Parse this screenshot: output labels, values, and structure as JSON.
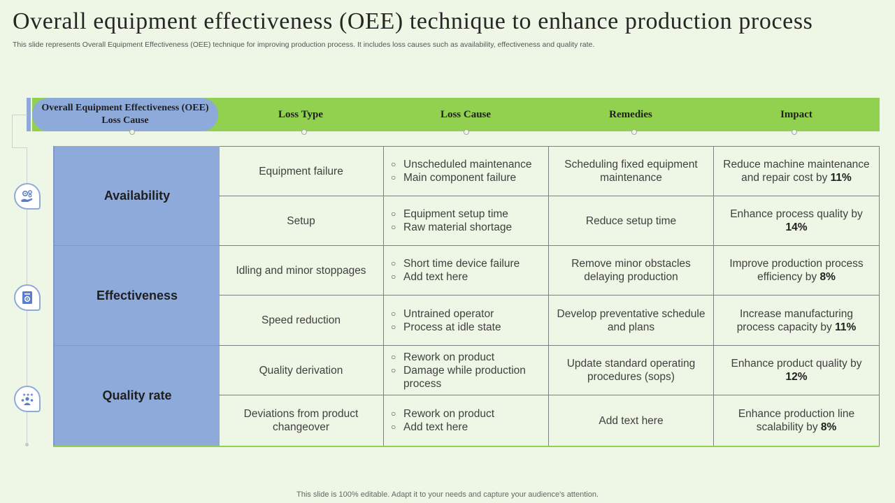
{
  "title": "Overall equipment effectiveness (OEE) technique to enhance production process",
  "subtitle": "This slide represents Overall Equipment Effectiveness (OEE) technique for improving production process. It includes loss causes such as availability, effectiveness and quality rate.",
  "header": {
    "first": "Overall Equipment Effectiveness (OEE) Loss Cause",
    "loss_type": "Loss Type",
    "loss_cause": "Loss Cause",
    "remedies": "Remedies",
    "impact": "Impact"
  },
  "categories": [
    "Availability",
    "Effectiveness",
    "Quality rate"
  ],
  "rows": [
    {
      "type": "Equipment failure",
      "causes": [
        "Unscheduled maintenance",
        "Main component failure"
      ],
      "remedy": "Scheduling fixed equipment maintenance",
      "impact_text": "Reduce machine maintenance and repair cost by",
      "impact_value": "11%"
    },
    {
      "type": "Setup",
      "causes": [
        "Equipment setup time",
        "Raw material shortage"
      ],
      "remedy": "Reduce setup time",
      "impact_text": "Enhance process quality by",
      "impact_value": "14%"
    },
    {
      "type": "Idling and minor stoppages",
      "causes": [
        "Short time device failure",
        "Add text here"
      ],
      "remedy": "Remove minor obstacles delaying production",
      "impact_text": "Improve production process efficiency by",
      "impact_value": "8%"
    },
    {
      "type": "Speed reduction",
      "causes": [
        "Untrained operator",
        "Process at idle state"
      ],
      "remedy": "Develop preventative schedule and plans",
      "impact_text": "Increase manufacturing process capacity by",
      "impact_value": "11%"
    },
    {
      "type": "Quality derivation",
      "causes": [
        "Rework on product",
        "Damage while production process"
      ],
      "remedy": "Update standard operating procedures (sops)",
      "impact_text": "Enhance product quality by",
      "impact_value": "12%"
    },
    {
      "type": "Deviations from product changeover",
      "causes": [
        "Rework on product",
        "Add text here"
      ],
      "remedy": "Add text here",
      "impact_text": "Enhance production line scalability by",
      "impact_value": "8%"
    }
  ],
  "icons": [
    "gears-hand-icon",
    "document-gear-icon",
    "people-stars-icon"
  ],
  "footer": "This slide is 100% editable. Adapt it to your needs and capture your audience's attention.",
  "colors": {
    "green": "#92d050",
    "blue": "#8eaadb",
    "background": "#eef6e6"
  }
}
